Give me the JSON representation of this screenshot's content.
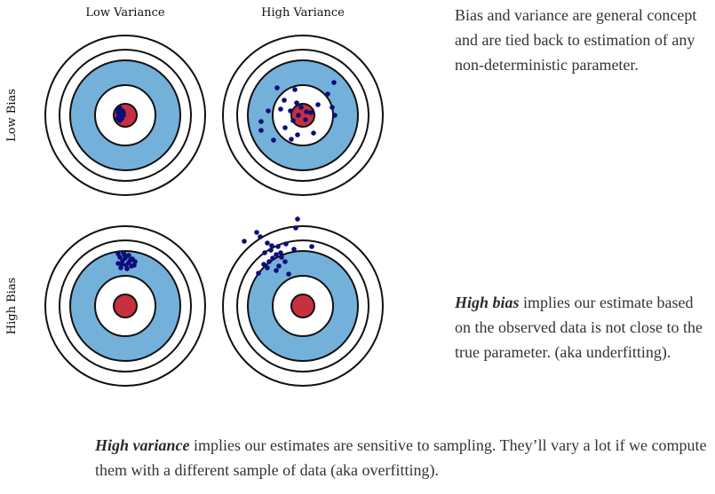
{
  "diagram": {
    "column_labels": [
      "Low Variance",
      "High Variance"
    ],
    "row_labels": [
      "Low Bias",
      "High Bias"
    ],
    "colors": {
      "ring_outer": "#ffffff",
      "ring_middle": "#ffffff",
      "ring_blue": "#74b1da",
      "ring_inner": "#ffffff",
      "bullseye": "#c8303f",
      "points": "#0d0d7a",
      "stroke": "#111111"
    }
  },
  "text": {
    "intro": "Bias and variance are general concept and are tied back to estimation of any non-deterministic parameter.",
    "bias_term": "High bias",
    "bias_rest": " implies our estimate based on the observed data is not close to the true parameter. (aka underfitting).",
    "variance_term": "High variance",
    "variance_rest": " implies our estimates are sensitive to sampling. They’ll vary a lot if we compute them with a different sample of data (aka overfitting)."
  }
}
